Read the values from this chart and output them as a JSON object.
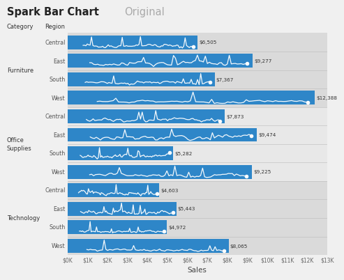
{
  "title_bold": "Spark Bar Chart",
  "title_normal": "Original",
  "col_header_category": "Category",
  "col_header_region": "Region",
  "xlabel": "Sales",
  "bar_color": "#2e86c8",
  "spark_color": "white",
  "dot_color": "white",
  "background_color": "#f0f0f0",
  "band_colors": [
    "#d8d8d8",
    "#e8e8e8"
  ],
  "categories": [
    {
      "name": "Furniture",
      "regions": [
        {
          "region": "Central",
          "value": 6505
        },
        {
          "region": "East",
          "value": 9277
        },
        {
          "region": "South",
          "value": 7367
        },
        {
          "region": "West",
          "value": 12388
        }
      ]
    },
    {
      "name": "Office\nSupplies",
      "regions": [
        {
          "region": "Central",
          "value": 7873
        },
        {
          "region": "East",
          "value": 9474
        },
        {
          "region": "South",
          "value": 5282
        },
        {
          "region": "West",
          "value": 9225
        }
      ]
    },
    {
      "name": "Technology",
      "regions": [
        {
          "region": "Central",
          "value": 4603
        },
        {
          "region": "East",
          "value": 5443
        },
        {
          "region": "South",
          "value": 4972
        },
        {
          "region": "West",
          "value": 8065
        }
      ]
    }
  ],
  "xmax": 13000,
  "xticks": [
    0,
    1000,
    2000,
    3000,
    4000,
    5000,
    6000,
    7000,
    8000,
    9000,
    10000,
    11000,
    12000,
    13000
  ],
  "xtick_labels": [
    "$0K",
    "$1K",
    "$2K",
    "$3K",
    "$4K",
    "$5K",
    "$6K",
    "$7K",
    "$8K",
    "$9K",
    "$10K",
    "$11K",
    "$12K",
    "$13K"
  ]
}
